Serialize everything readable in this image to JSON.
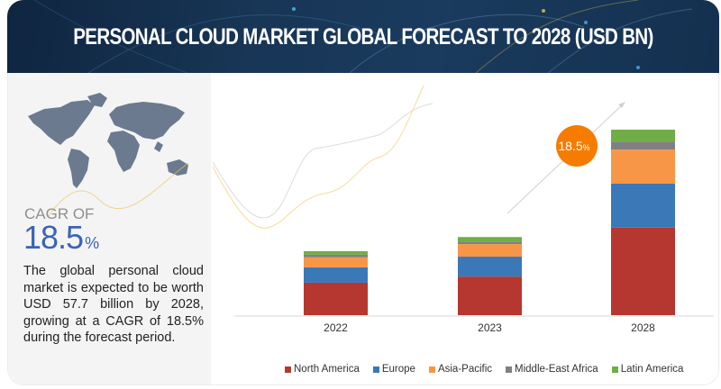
{
  "header": {
    "title": "PERSONAL CLOUD MARKET GLOBAL FORECAST TO 2028 (USD BN)"
  },
  "left_panel": {
    "map_icon": "world-map-icon",
    "cagr_label": "CAGR OF",
    "cagr_value": "18.5",
    "cagr_unit": "%",
    "description": "The global personal cloud market is expected to be worth USD 57.7 billion by 2028, growing at a CAGR of 18.5% during the forecast period."
  },
  "badge": {
    "value": "18.5",
    "unit": "%"
  },
  "colors": {
    "header_bg": "#183656",
    "accent_blue": "#3a64b5",
    "badge_orange": "#f57c00"
  },
  "chart_data": {
    "type": "bar",
    "stacked": true,
    "title": "PERSONAL CLOUD MARKET GLOBAL FORECAST TO 2028 (USD BN)",
    "xlabel": "",
    "ylabel": "",
    "ylim": [
      0,
      60
    ],
    "grid": false,
    "legend_position": "bottom",
    "categories": [
      "2022",
      "2023",
      "2028"
    ],
    "series": [
      {
        "name": "North America",
        "color": "#b5372f",
        "values": [
          10.1,
          12.0,
          27.2
        ]
      },
      {
        "name": "Europe",
        "color": "#3b78b8",
        "values": [
          4.8,
          6.2,
          13.7
        ]
      },
      {
        "name": "Asia-Pacific",
        "color": "#f79646",
        "values": [
          3.1,
          3.9,
          10.6
        ]
      },
      {
        "name": "Middle-East Africa",
        "color": "#808080",
        "values": [
          0.8,
          0.8,
          2.5
        ]
      },
      {
        "name": "Latin America",
        "color": "#70ad47",
        "values": [
          1.1,
          1.4,
          3.7
        ]
      }
    ],
    "annotation": "18.5%"
  }
}
